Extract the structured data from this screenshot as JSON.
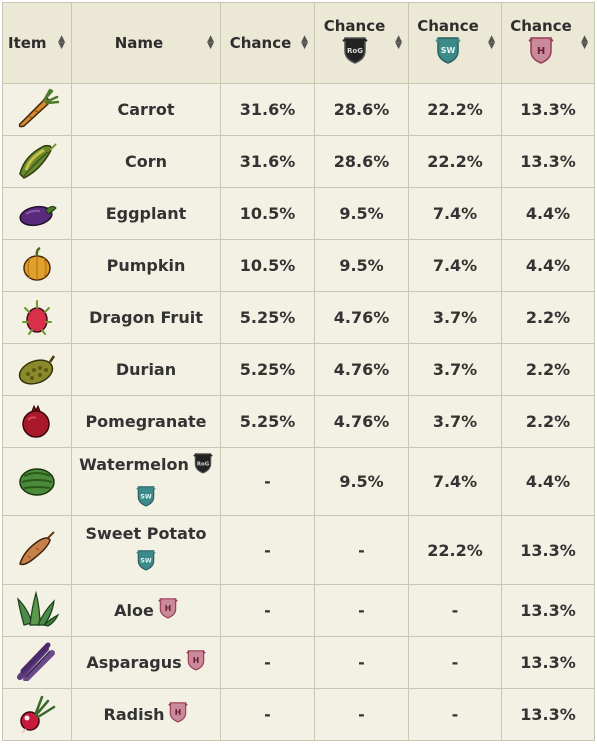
{
  "headers": {
    "item": "Item",
    "name": "Name",
    "chance": "Chance",
    "chance_rog": "Chance",
    "chance_sw": "Chance",
    "chance_ham": "Chance",
    "rog_badge_text": "RoG",
    "sw_badge_text": "SW",
    "ham_badge_text": "H"
  },
  "colors": {
    "name_text": "#8a1538",
    "header_bg": "#ebe8d6",
    "row_bg": "#f3f1e4",
    "border": "#c9c6b5",
    "rog_badge": "#222222",
    "sw_badge": "#3d8a8a",
    "ham_badge": "#9a3a55"
  },
  "rows": [
    {
      "icon": "carrot-icon",
      "name": "Carrot",
      "badges": [],
      "c1": "31.6%",
      "c2": "28.6%",
      "c3": "22.2%",
      "c4": "13.3%"
    },
    {
      "icon": "corn-icon",
      "name": "Corn",
      "badges": [],
      "c1": "31.6%",
      "c2": "28.6%",
      "c3": "22.2%",
      "c4": "13.3%"
    },
    {
      "icon": "eggplant-icon",
      "name": "Eggplant",
      "badges": [],
      "c1": "10.5%",
      "c2": "9.5%",
      "c3": "7.4%",
      "c4": "4.4%"
    },
    {
      "icon": "pumpkin-icon",
      "name": "Pumpkin",
      "badges": [],
      "c1": "10.5%",
      "c2": "9.5%",
      "c3": "7.4%",
      "c4": "4.4%"
    },
    {
      "icon": "dragon-fruit-icon",
      "name": "Dragon Fruit",
      "badges": [],
      "c1": "5.25%",
      "c2": "4.76%",
      "c3": "3.7%",
      "c4": "2.2%"
    },
    {
      "icon": "durian-icon",
      "name": "Durian",
      "badges": [],
      "c1": "5.25%",
      "c2": "4.76%",
      "c3": "3.7%",
      "c4": "2.2%"
    },
    {
      "icon": "pomegranate-icon",
      "name": "Pomegranate",
      "badges": [],
      "c1": "5.25%",
      "c2": "4.76%",
      "c3": "3.7%",
      "c4": "2.2%"
    },
    {
      "icon": "watermelon-icon",
      "name": "Watermelon",
      "badges": [
        "rog",
        "sw"
      ],
      "c1": "-",
      "c2": "9.5%",
      "c3": "7.4%",
      "c4": "4.4%"
    },
    {
      "icon": "sweet-potato-icon",
      "name": "Sweet Potato",
      "badges": [
        "sw"
      ],
      "c1": "-",
      "c2": "-",
      "c3": "22.2%",
      "c4": "13.3%"
    },
    {
      "icon": "aloe-icon",
      "name": "Aloe",
      "badges": [
        "ham"
      ],
      "c1": "-",
      "c2": "-",
      "c3": "-",
      "c4": "13.3%"
    },
    {
      "icon": "asparagus-icon",
      "name": "Asparagus",
      "badges": [
        "ham"
      ],
      "c1": "-",
      "c2": "-",
      "c3": "-",
      "c4": "13.3%"
    },
    {
      "icon": "radish-icon",
      "name": "Radish",
      "badges": [
        "ham"
      ],
      "c1": "-",
      "c2": "-",
      "c3": "-",
      "c4": "13.3%"
    }
  ]
}
